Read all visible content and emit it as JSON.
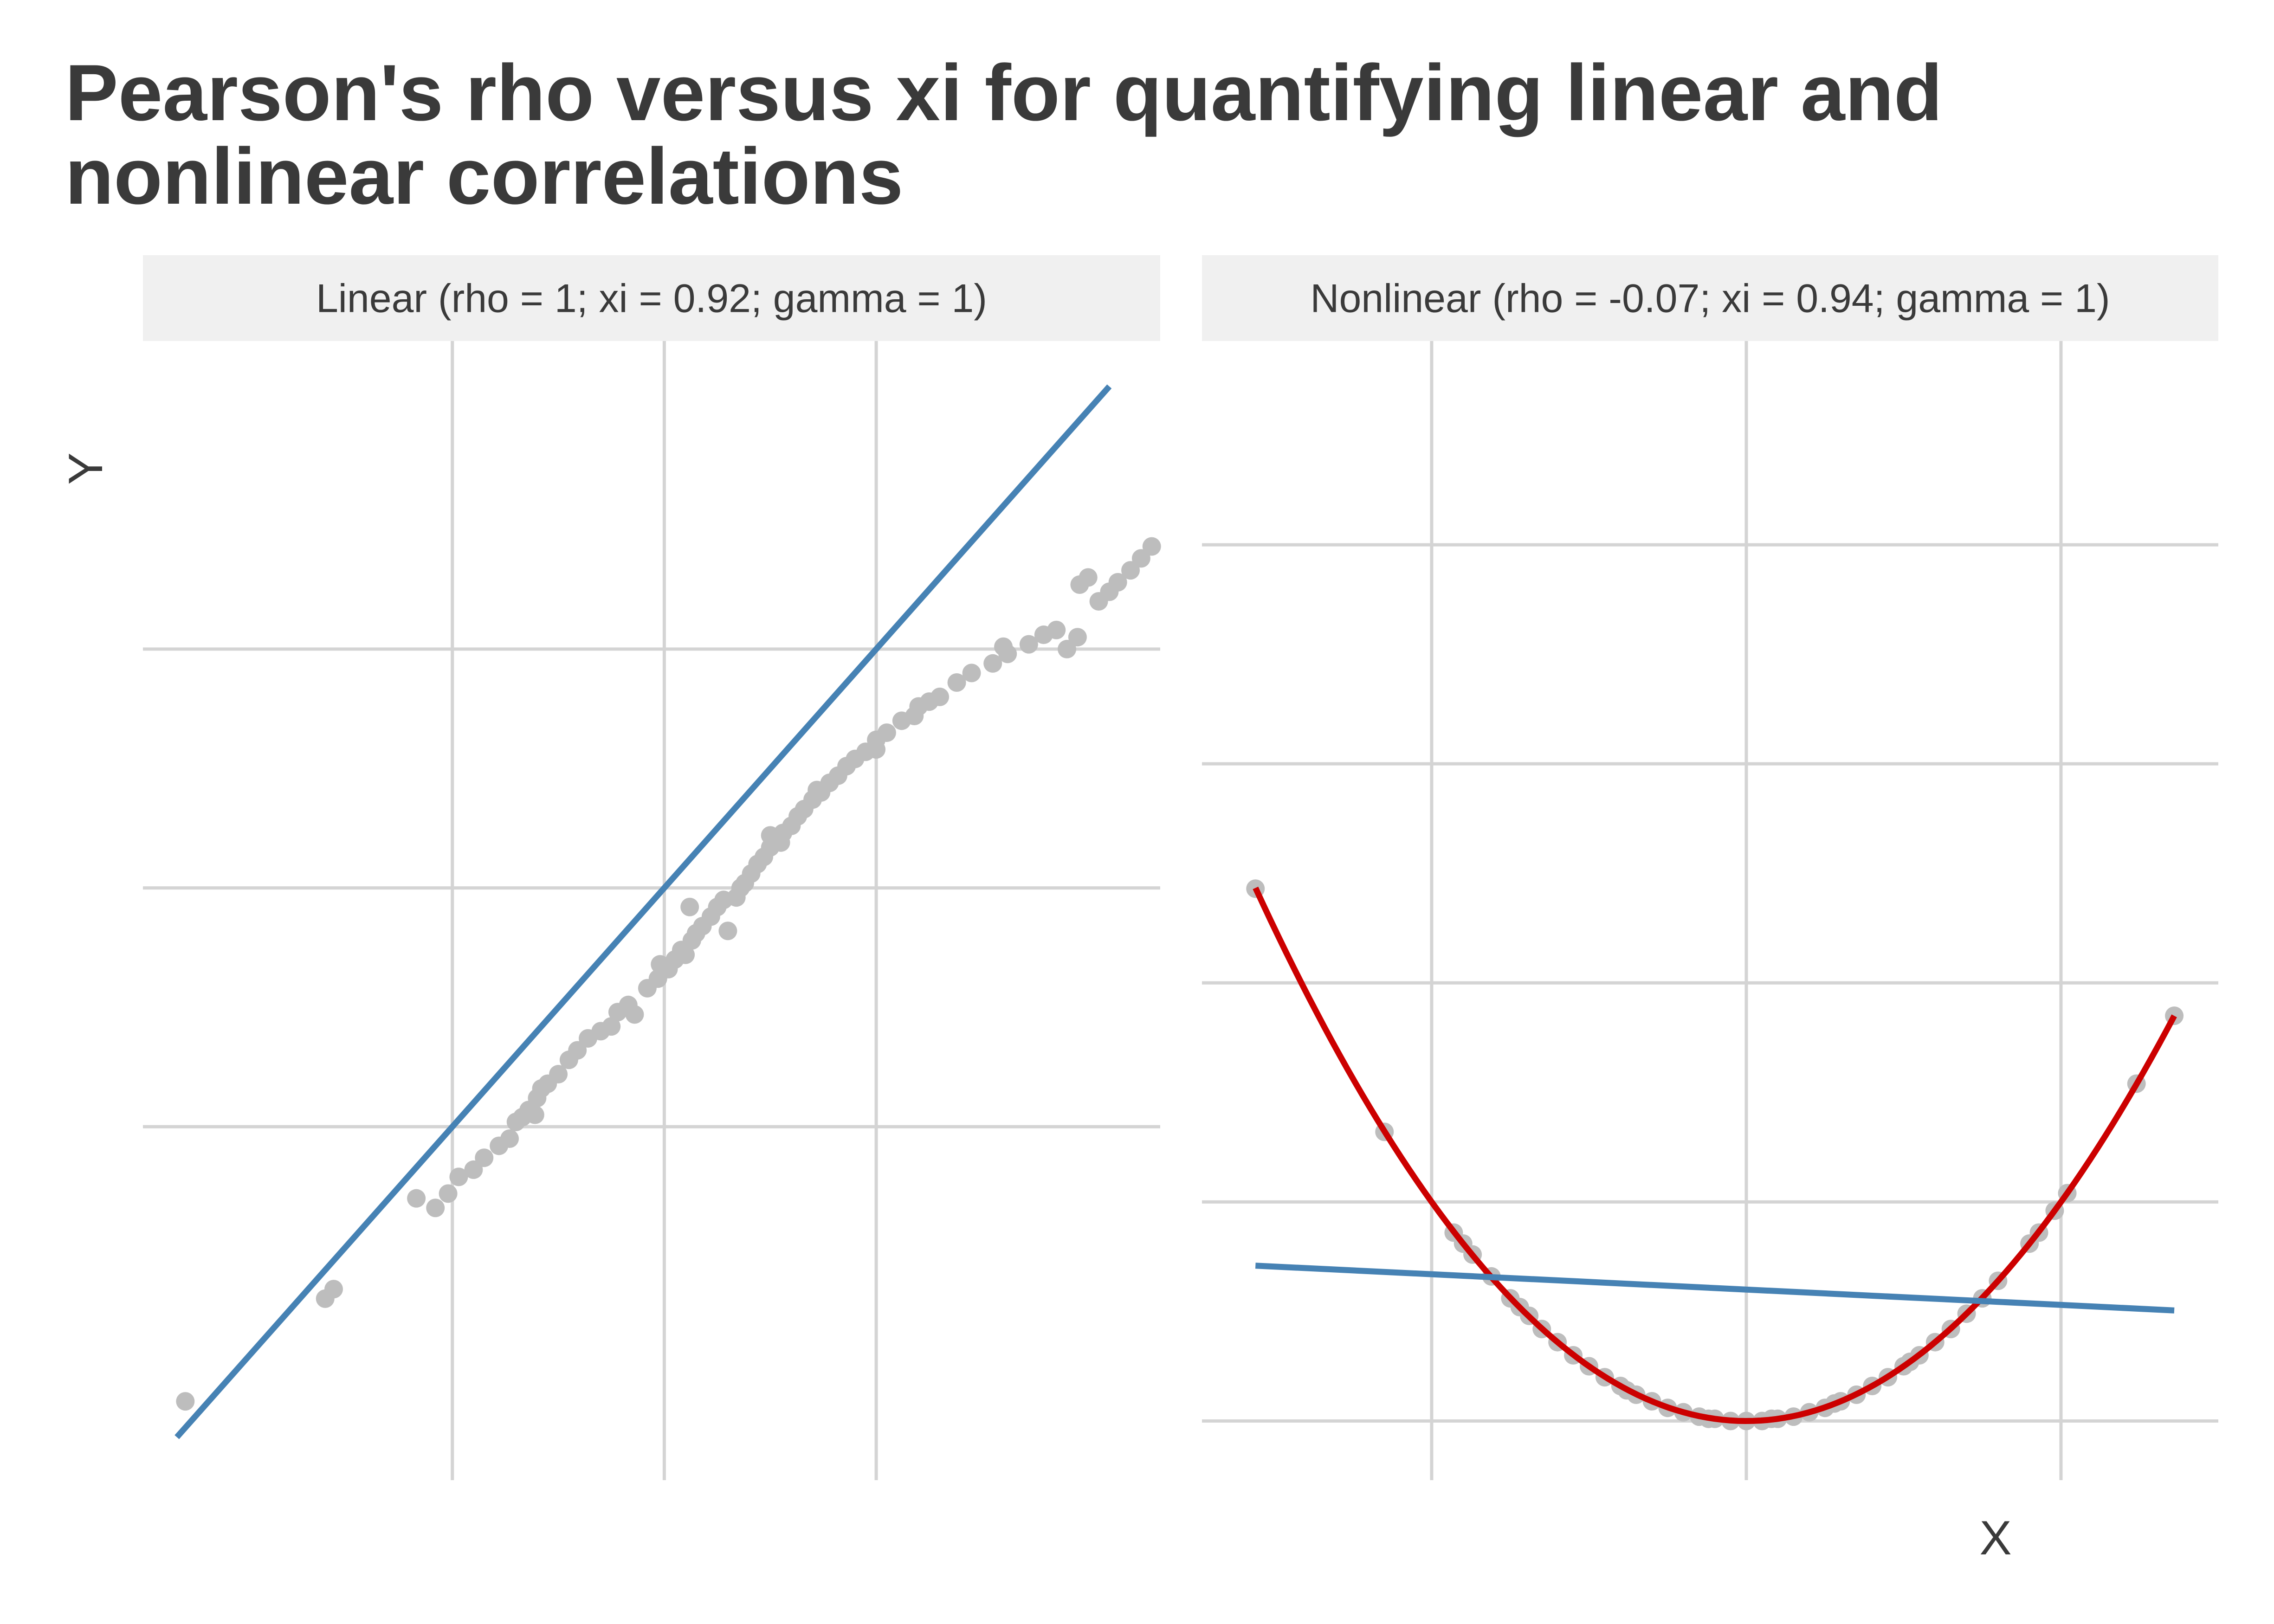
{
  "title": "Pearson's rho versus xi for quantifying linear and nonlinear correlations",
  "xlabel": "X",
  "ylabel": "Y",
  "colors": {
    "points": "#bdbdbd",
    "linear_fit": "#4682b4",
    "nonlinear_fit": "#cc0000",
    "strip": "#f0f0f0",
    "grid": "#d4d4d4"
  },
  "chart_data": [
    {
      "type": "scatter",
      "strip_label": "Linear (rho = 1; xi = 0.92; gamma = 1)",
      "xlim": [
        -2.46,
        2.34
      ],
      "ylim": [
        -2.48,
        2.29
      ],
      "grid": true,
      "show_tick_labels": false,
      "x_gridlines": [
        -1,
        0,
        1
      ],
      "y_gridlines": [
        -1,
        0,
        1
      ],
      "fit_line": {
        "intercept": 0.0,
        "slope": 1.0,
        "x_range": [
          -2.3,
          2.1
        ]
      },
      "points": [
        [
          -2.26,
          -2.15
        ],
        [
          -1.6,
          -1.72
        ],
        [
          -1.56,
          -1.68
        ],
        [
          -1.17,
          -1.3
        ],
        [
          -1.08,
          -1.34
        ],
        [
          -1.02,
          -1.28
        ],
        [
          -0.97,
          -1.21
        ],
        [
          -0.9,
          -1.18
        ],
        [
          -0.85,
          -1.13
        ],
        [
          -0.78,
          -1.08
        ],
        [
          -0.73,
          -1.05
        ],
        [
          -0.7,
          -0.98
        ],
        [
          -0.67,
          -0.96
        ],
        [
          -0.64,
          -0.93
        ],
        [
          -0.61,
          -0.95
        ],
        [
          -0.6,
          -0.88
        ],
        [
          -0.58,
          -0.84
        ],
        [
          -0.55,
          -0.82
        ],
        [
          -0.5,
          -0.78
        ],
        [
          -0.45,
          -0.72
        ],
        [
          -0.41,
          -0.68
        ],
        [
          -0.36,
          -0.63
        ],
        [
          -0.3,
          -0.6
        ],
        [
          -0.25,
          -0.58
        ],
        [
          -0.22,
          -0.52
        ],
        [
          -0.17,
          -0.49
        ],
        [
          -0.14,
          -0.53
        ],
        [
          -0.08,
          -0.42
        ],
        [
          -0.03,
          -0.38
        ],
        [
          0.02,
          -0.34
        ],
        [
          0.05,
          -0.3
        ],
        [
          0.08,
          -0.26
        ],
        [
          0.1,
          -0.28
        ],
        [
          0.13,
          -0.22
        ],
        [
          0.15,
          -0.19
        ],
        [
          0.18,
          -0.16
        ],
        [
          0.22,
          -0.12
        ],
        [
          0.25,
          -0.08
        ],
        [
          0.28,
          -0.05
        ],
        [
          0.3,
          -0.18
        ],
        [
          0.34,
          -0.04
        ],
        [
          0.38,
          0.02
        ],
        [
          0.41,
          0.06
        ],
        [
          0.44,
          0.1
        ],
        [
          0.47,
          0.13
        ],
        [
          0.5,
          0.17
        ],
        [
          0.53,
          0.2
        ],
        [
          0.56,
          0.23
        ],
        [
          0.6,
          0.26
        ],
        [
          0.63,
          0.3
        ],
        [
          0.66,
          0.33
        ],
        [
          0.7,
          0.37
        ],
        [
          0.74,
          0.4
        ],
        [
          0.78,
          0.44
        ],
        [
          0.82,
          0.47
        ],
        [
          0.86,
          0.51
        ],
        [
          0.9,
          0.54
        ],
        [
          0.95,
          0.57
        ],
        [
          1.0,
          0.62
        ],
        [
          1.05,
          0.65
        ],
        [
          1.12,
          0.7
        ],
        [
          1.18,
          0.72
        ],
        [
          1.25,
          0.78
        ],
        [
          1.3,
          0.8
        ],
        [
          1.38,
          0.86
        ],
        [
          1.45,
          0.9
        ],
        [
          1.55,
          0.94
        ],
        [
          1.62,
          0.98
        ],
        [
          1.72,
          1.02
        ],
        [
          1.79,
          1.06
        ],
        [
          1.85,
          1.08
        ],
        [
          1.9,
          1.0
        ],
        [
          1.95,
          1.05
        ],
        [
          2.05,
          1.2
        ],
        [
          2.1,
          1.24
        ],
        [
          2.14,
          1.28
        ],
        [
          2.2,
          1.33
        ],
        [
          2.25,
          1.38
        ],
        [
          2.3,
          1.43
        ],
        [
          -0.02,
          -0.32
        ],
        [
          0.12,
          -0.08
        ],
        [
          0.5,
          0.22
        ],
        [
          0.72,
          0.41
        ],
        [
          1.0,
          0.58
        ],
        [
          1.2,
          0.76
        ],
        [
          1.6,
          1.01
        ],
        [
          1.96,
          1.27
        ],
        [
          2.0,
          1.3
        ],
        [
          0.36,
          0.0
        ],
        [
          0.55,
          0.19
        ]
      ]
    },
    {
      "type": "scatter",
      "strip_label": "Nonlinear (rho = -0.07; xi = 0.94; gamma = 1)",
      "xlim": [
        -1.73,
        1.5
      ],
      "ylim": [
        -0.27,
        4.93
      ],
      "grid": true,
      "show_tick_labels": false,
      "x_gridlines": [
        -1,
        0,
        1
      ],
      "y_gridlines": [
        0,
        1,
        2,
        3,
        4,
        5
      ],
      "fit_line": {
        "intercept": 0.6,
        "slope": -0.07,
        "x_range": [
          -1.56,
          1.36
        ]
      },
      "curve": {
        "formula": "y = x^2",
        "x_range": [
          -1.56,
          1.36
        ]
      },
      "points": [
        [
          -1.56,
          2.43
        ],
        [
          -1.15,
          1.32
        ],
        [
          -0.93,
          0.86
        ],
        [
          -0.87,
          0.76
        ],
        [
          -0.81,
          0.66
        ],
        [
          -0.75,
          0.56
        ],
        [
          -0.69,
          0.48
        ],
        [
          -0.65,
          0.42
        ],
        [
          -0.6,
          0.36
        ],
        [
          -0.55,
          0.3
        ],
        [
          -0.5,
          0.25
        ],
        [
          -0.45,
          0.2
        ],
        [
          -0.4,
          0.16
        ],
        [
          -0.35,
          0.12
        ],
        [
          -0.3,
          0.09
        ],
        [
          -0.25,
          0.06
        ],
        [
          -0.2,
          0.04
        ],
        [
          -0.15,
          0.02
        ],
        [
          -0.1,
          0.01
        ],
        [
          -0.05,
          0.0
        ],
        [
          0.0,
          0.0
        ],
        [
          0.05,
          0.0
        ],
        [
          0.1,
          0.01
        ],
        [
          0.15,
          0.02
        ],
        [
          0.2,
          0.04
        ],
        [
          0.25,
          0.06
        ],
        [
          0.3,
          0.09
        ],
        [
          0.35,
          0.12
        ],
        [
          0.4,
          0.16
        ],
        [
          0.45,
          0.2
        ],
        [
          0.5,
          0.25
        ],
        [
          0.55,
          0.3
        ],
        [
          0.6,
          0.36
        ],
        [
          0.65,
          0.42
        ],
        [
          0.7,
          0.49
        ],
        [
          0.75,
          0.56
        ],
        [
          0.8,
          0.64
        ],
        [
          0.9,
          0.81
        ],
        [
          0.93,
          0.86
        ],
        [
          0.98,
          0.96
        ],
        [
          1.02,
          1.04
        ],
        [
          1.24,
          1.54
        ],
        [
          1.36,
          1.85
        ],
        [
          -0.38,
          0.14
        ],
        [
          -0.12,
          0.01
        ],
        [
          0.08,
          0.01
        ],
        [
          0.28,
          0.08
        ],
        [
          0.52,
          0.27
        ],
        [
          -0.72,
          0.52
        ],
        [
          -0.9,
          0.81
        ]
      ]
    }
  ]
}
